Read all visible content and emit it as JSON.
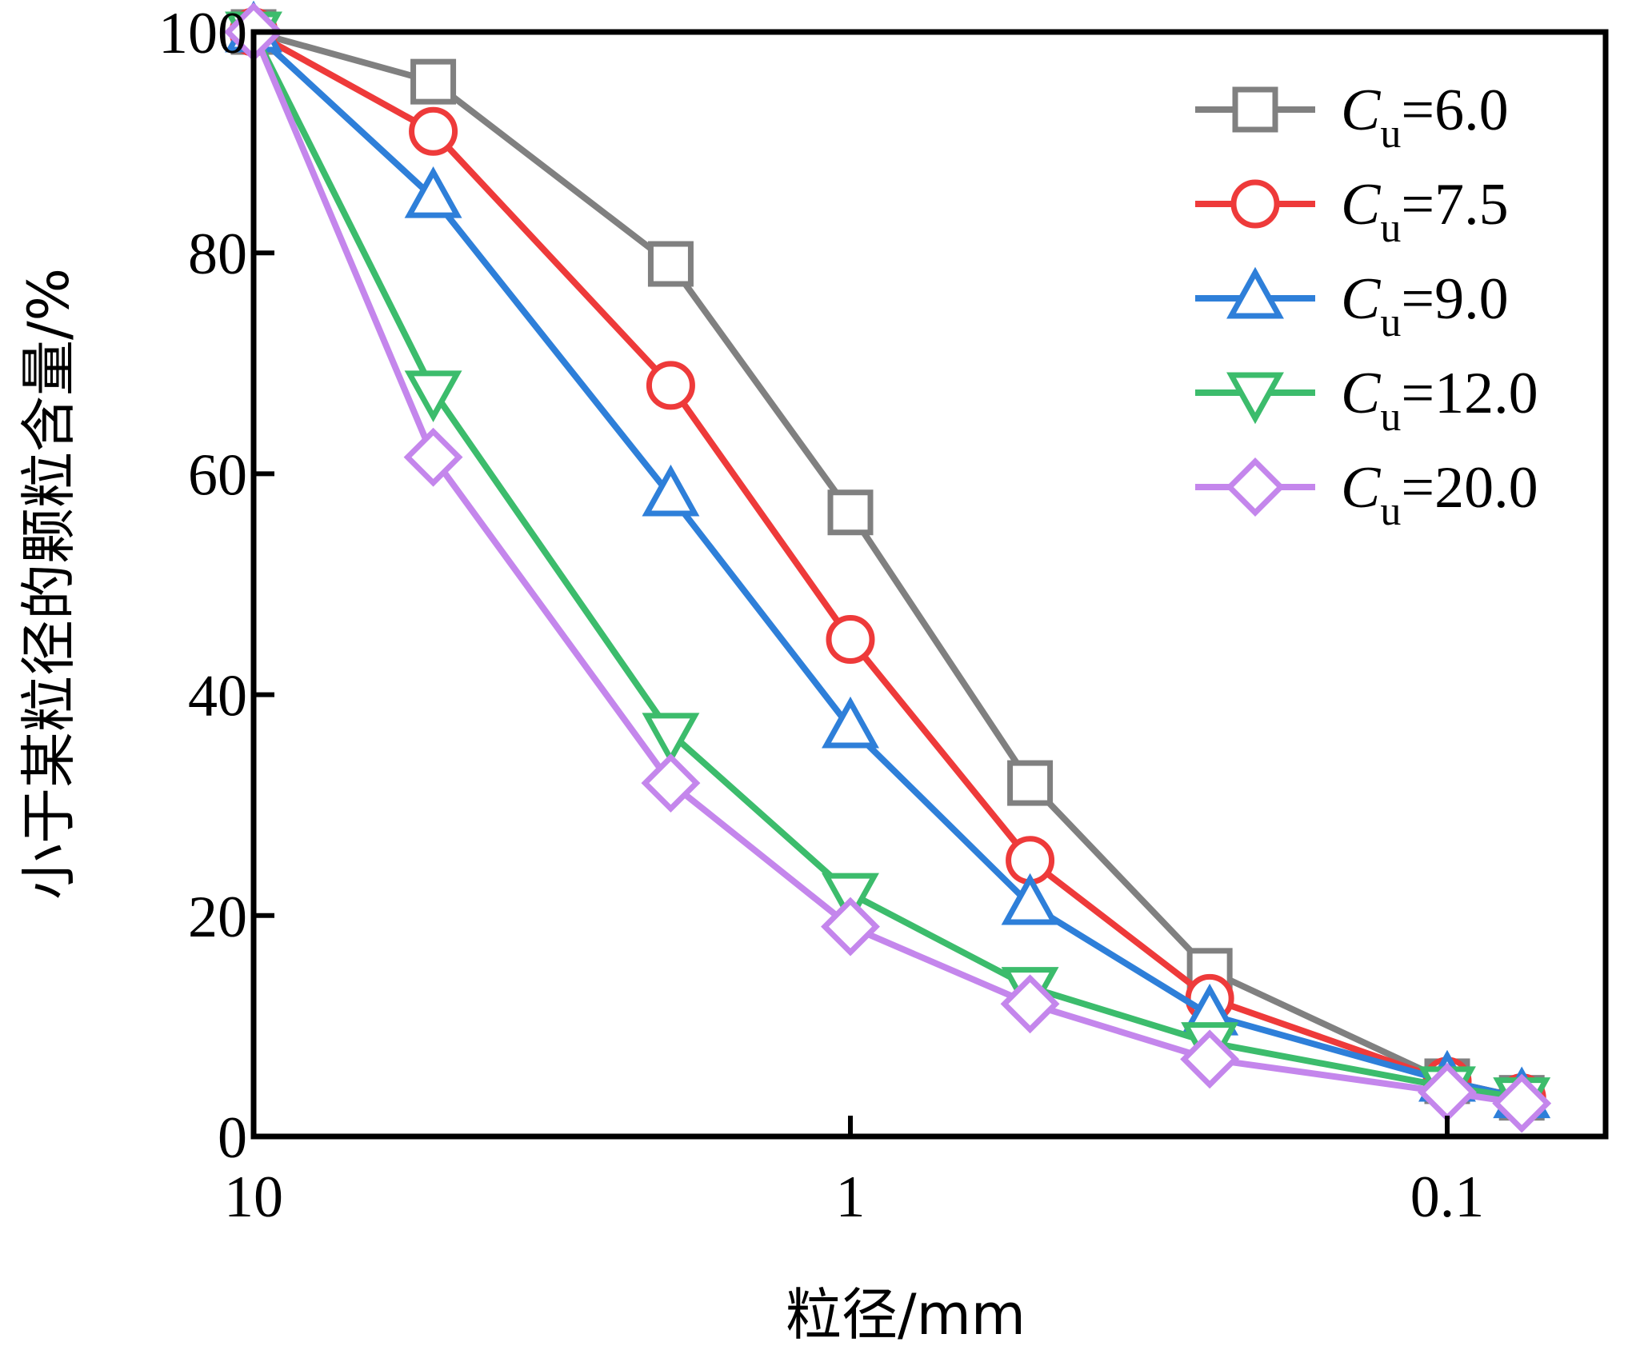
{
  "chart_data": {
    "type": "line",
    "title": "",
    "xlabel": "粒径/mm",
    "ylabel": "小于某粒径的颗粒含量/%",
    "x_scale": "log",
    "x_reversed": true,
    "xlim": [
      10,
      0.058
    ],
    "ylim": [
      0,
      100
    ],
    "x_ticks": [
      10,
      1,
      0.1
    ],
    "x_tick_labels": [
      "10",
      "1",
      "0.1"
    ],
    "y_ticks": [
      0,
      20,
      40,
      60,
      80,
      100
    ],
    "y_tick_labels": [
      "0",
      "20",
      "40",
      "60",
      "80",
      "100"
    ],
    "x": [
      10,
      5,
      2,
      1,
      0.5,
      0.25,
      0.1,
      0.075
    ],
    "legend_position": "top-right",
    "series": [
      {
        "name": "Cu=6.0",
        "sym": "C",
        "sub": "u",
        "rest": "=6.0",
        "color": "#808080",
        "marker": "square",
        "values": [
          100,
          95.5,
          79,
          56.5,
          32,
          15,
          5,
          3.5
        ]
      },
      {
        "name": "Cu=7.5",
        "sym": "C",
        "sub": "u",
        "rest": "=7.5",
        "color": "#ee3a3a",
        "marker": "circle",
        "values": [
          100,
          91,
          68,
          45,
          25,
          12.5,
          5,
          3.5
        ]
      },
      {
        "name": "Cu=9.0",
        "sym": "C",
        "sub": "u",
        "rest": "=9.0",
        "color": "#2e7fd9",
        "marker": "triangle-up",
        "values": [
          100,
          85,
          58,
          37,
          21,
          11,
          5,
          3.5
        ]
      },
      {
        "name": "Cu=12.0",
        "sym": "C",
        "sub": "u",
        "rest": "=12.0",
        "color": "#3cbc6c",
        "marker": "triangle-down",
        "values": [
          100,
          67.5,
          36.5,
          22,
          13.5,
          8.5,
          4.5,
          3.5
        ]
      },
      {
        "name": "Cu=20.0",
        "sym": "C",
        "sub": "u",
        "rest": "=20.0",
        "color": "#c486ec",
        "marker": "diamond",
        "values": [
          100,
          61.5,
          32,
          19,
          12,
          7,
          4,
          3
        ]
      }
    ]
  }
}
